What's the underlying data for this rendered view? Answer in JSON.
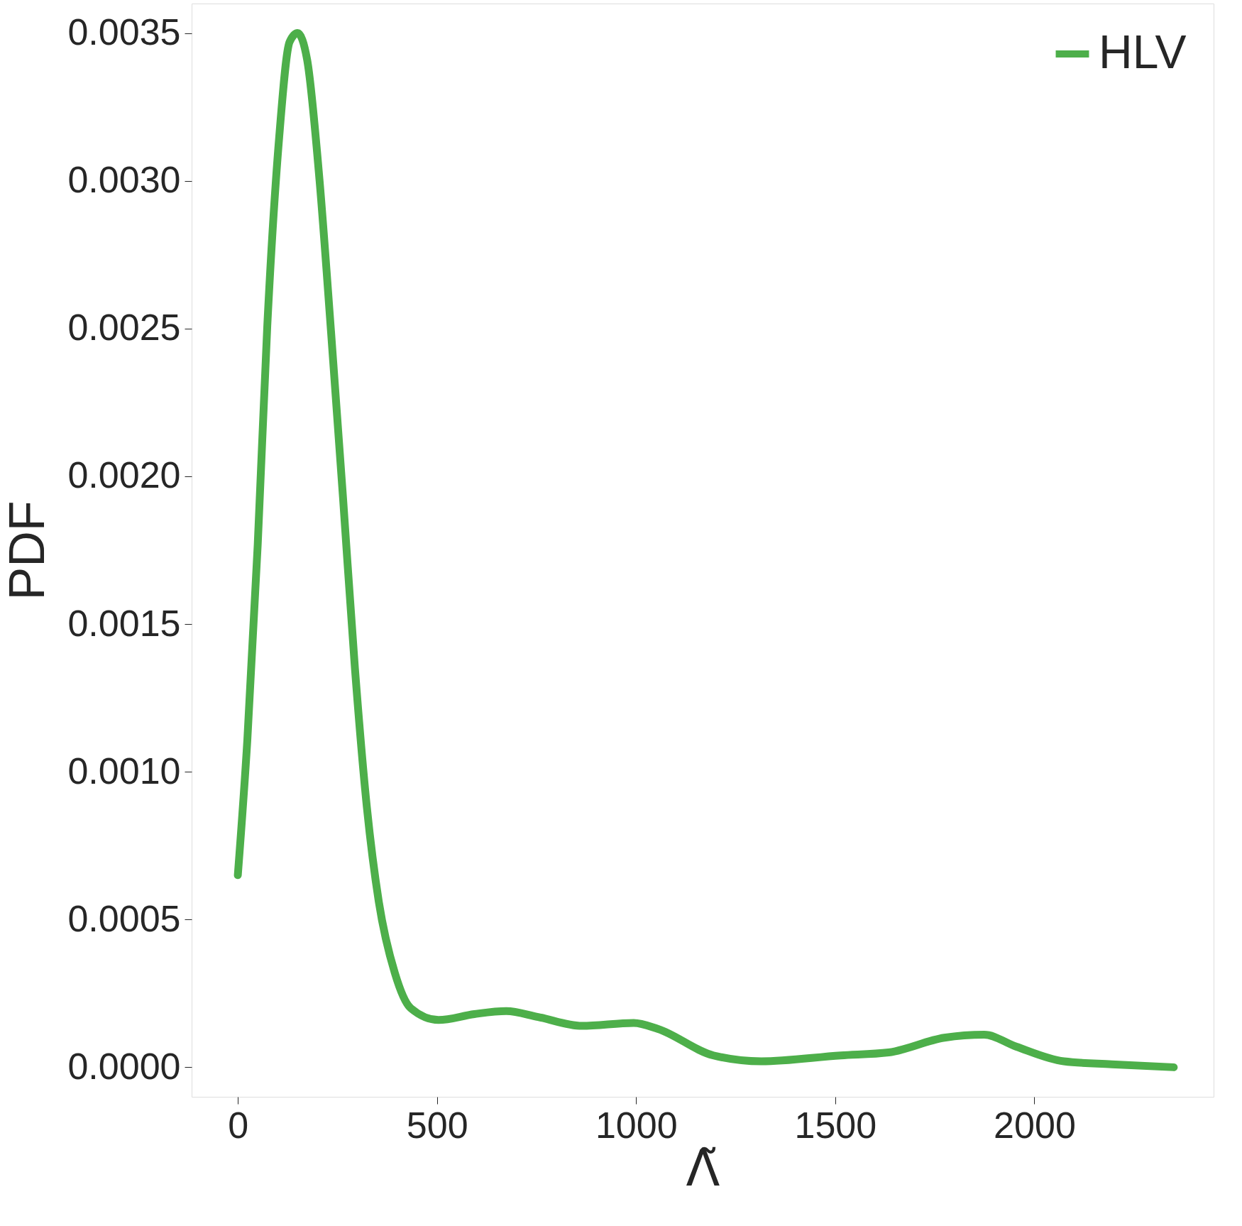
{
  "chart_data": {
    "type": "line",
    "xlabel": "Λ̃",
    "ylabel": "PDF",
    "x": [
      0,
      24,
      50,
      74,
      104,
      130,
      150,
      174,
      204,
      234,
      264,
      294,
      324,
      354,
      394,
      434,
      504,
      594,
      674,
      754,
      864,
      994,
      1054,
      1194,
      1314,
      1514,
      1634,
      1774,
      1874,
      1954,
      2074,
      2194,
      2350
    ],
    "series": [
      {
        "name": "HLV",
        "color": "#4daf4a",
        "values": [
          0.00065,
          0.00111,
          0.00177,
          0.00251,
          0.00315,
          0.00347,
          0.0035,
          0.00341,
          0.00302,
          0.00249,
          0.00193,
          0.00135,
          0.00088,
          0.00056,
          0.00032,
          0.0002,
          0.00016,
          0.00018,
          0.00019,
          0.00017,
          0.00014,
          0.00015,
          0.00013,
          4e-05,
          2e-05,
          4e-05,
          5e-05,
          0.0001,
          0.00011,
          7e-05,
          2e-05,
          1e-05,
          0.0
        ]
      }
    ],
    "xlim": [
      -116,
      2450
    ],
    "ylim": [
      -0.0001,
      0.0036
    ],
    "xticks": [
      0,
      500,
      1000,
      1500,
      2000
    ],
    "yticks": [
      {
        "value": 0,
        "label": "0.0000"
      },
      {
        "value": 0.0005,
        "label": "0.0005"
      },
      {
        "value": 0.001,
        "label": "0.0010"
      },
      {
        "value": 0.0015,
        "label": "0.0015"
      },
      {
        "value": 0.002,
        "label": "0.0020"
      },
      {
        "value": 0.0025,
        "label": "0.0025"
      },
      {
        "value": 0.003,
        "label": "0.0030"
      },
      {
        "value": 0.0035,
        "label": "0.0035"
      }
    ],
    "legend": "top right",
    "grid": false,
    "line_style": "solid",
    "marker": "none"
  }
}
